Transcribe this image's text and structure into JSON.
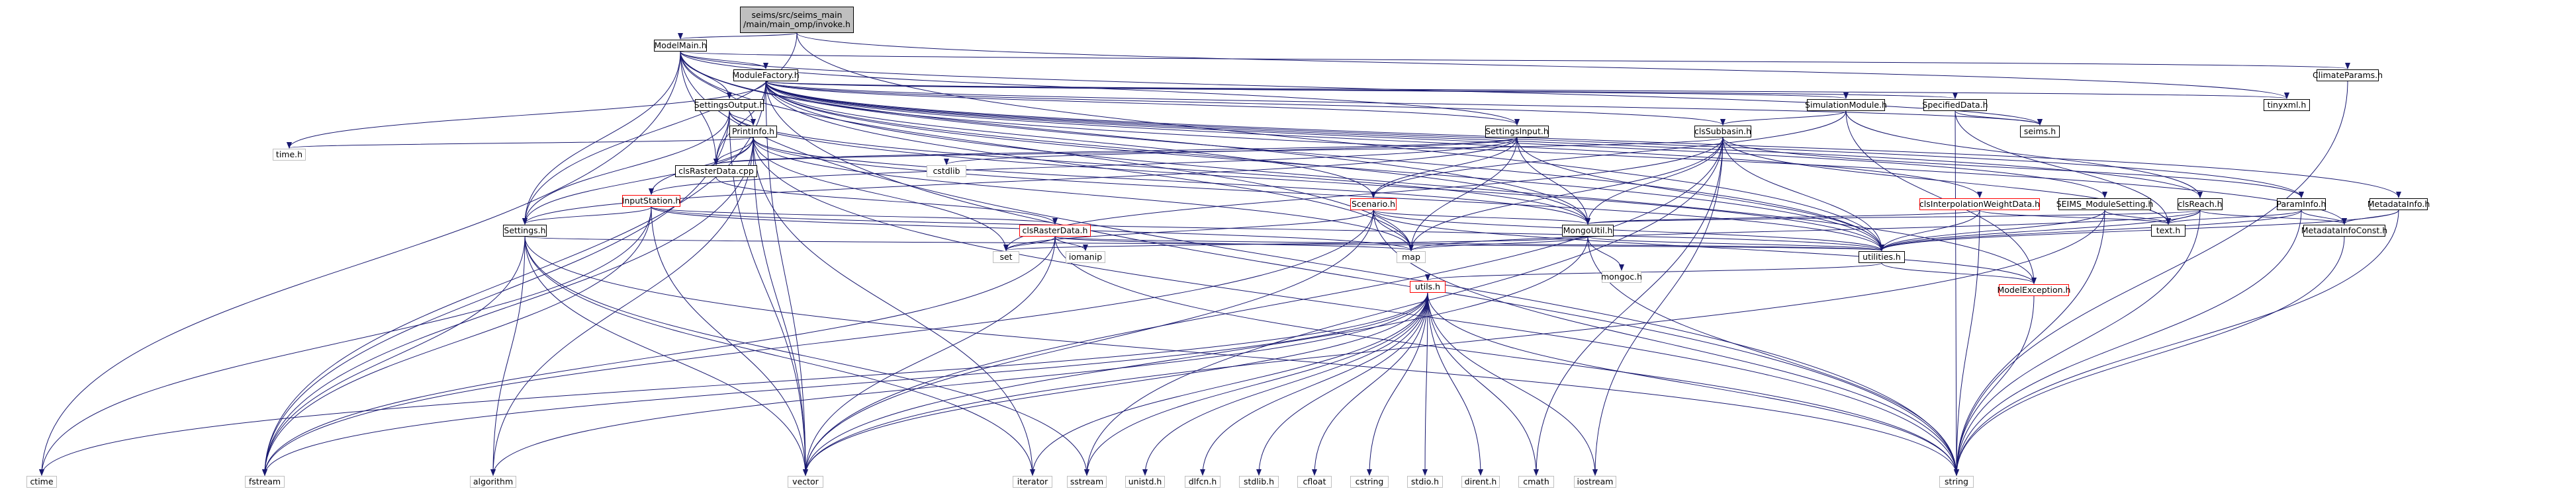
{
  "root": {
    "line1": "seims/src/seims_main",
    "line2": "/main/main_omp/invoke.h"
  },
  "nodes": {
    "ModelMain": "ModelMain.h",
    "ModuleFactory": "ModuleFactory.h",
    "ClimateParams": "ClimateParams.h",
    "SettingsOutput": "SettingsOutput.h",
    "PrintInfo": "PrintInfo.h",
    "SettingsInput": "SettingsInput.h",
    "SimulationModule": "SimulationModule.h",
    "SpecifiedData": "SpecifiedData.h",
    "clsSubbasin": "clsSubbasin.h",
    "tinyxml": "tinyxml.h",
    "seims": "seims.h",
    "time": "time.h",
    "clsRasterDataCpp": "clsRasterData.cpp",
    "cstdlib": "cstdlib",
    "InputStation": "InputStation.h",
    "Scenario": "Scenario.h",
    "clsInterpolationWeightData": "clsInterpolationWeightData.h",
    "SEIMS_ModuleSetting": "SEIMS_ModuleSetting.h",
    "clsReach": "clsReach.h",
    "ParamInfo": "ParamInfo.h",
    "MetadataInfo": "MetadataInfo.h",
    "Settings": "Settings.h",
    "clsRasterDataH": "clsRasterData.h",
    "MongoUtil": "MongoUtil.h",
    "textH": "text.h",
    "MetadataInfoConst": "MetadataInfoConst.h",
    "set": "set",
    "iomanip": "iomanip",
    "map": "map",
    "utilities": "utilities.h",
    "mongoc": "mongoc.h",
    "utils": "utils.h",
    "ModelException": "ModelException.h",
    "ctime": "ctime",
    "fstream": "fstream",
    "algorithm": "algorithm",
    "vector": "vector",
    "iterator": "iterator",
    "sstream": "sstream",
    "unistd": "unistd.h",
    "dlfcn": "dlfcn.h",
    "stdlib": "stdlib.h",
    "cfloat": "cfloat",
    "cstring": "cstring",
    "stdio": "stdio.h",
    "dirent": "dirent.h",
    "cmath": "cmath",
    "iostream": "iostream",
    "string": "string"
  },
  "colors": {
    "edge": "#191970",
    "red_border": "#ff0000",
    "sys_border": "#bfbfbf",
    "root_fill": "#bfbfbf"
  }
}
